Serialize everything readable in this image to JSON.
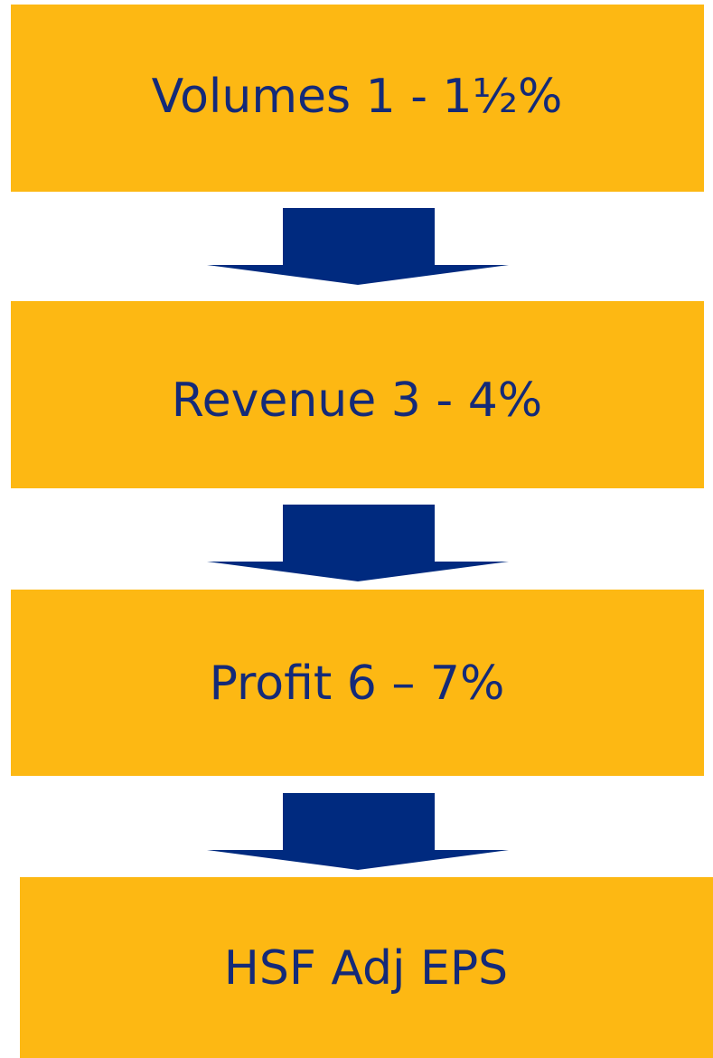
{
  "nodes": [
    {
      "label": "Volumes 1 - 1½%"
    },
    {
      "label": "Revenue 3 - 4%"
    },
    {
      "label": "Profit 6 – 7%"
    },
    {
      "label": "HSF Adj EPS"
    }
  ]
}
